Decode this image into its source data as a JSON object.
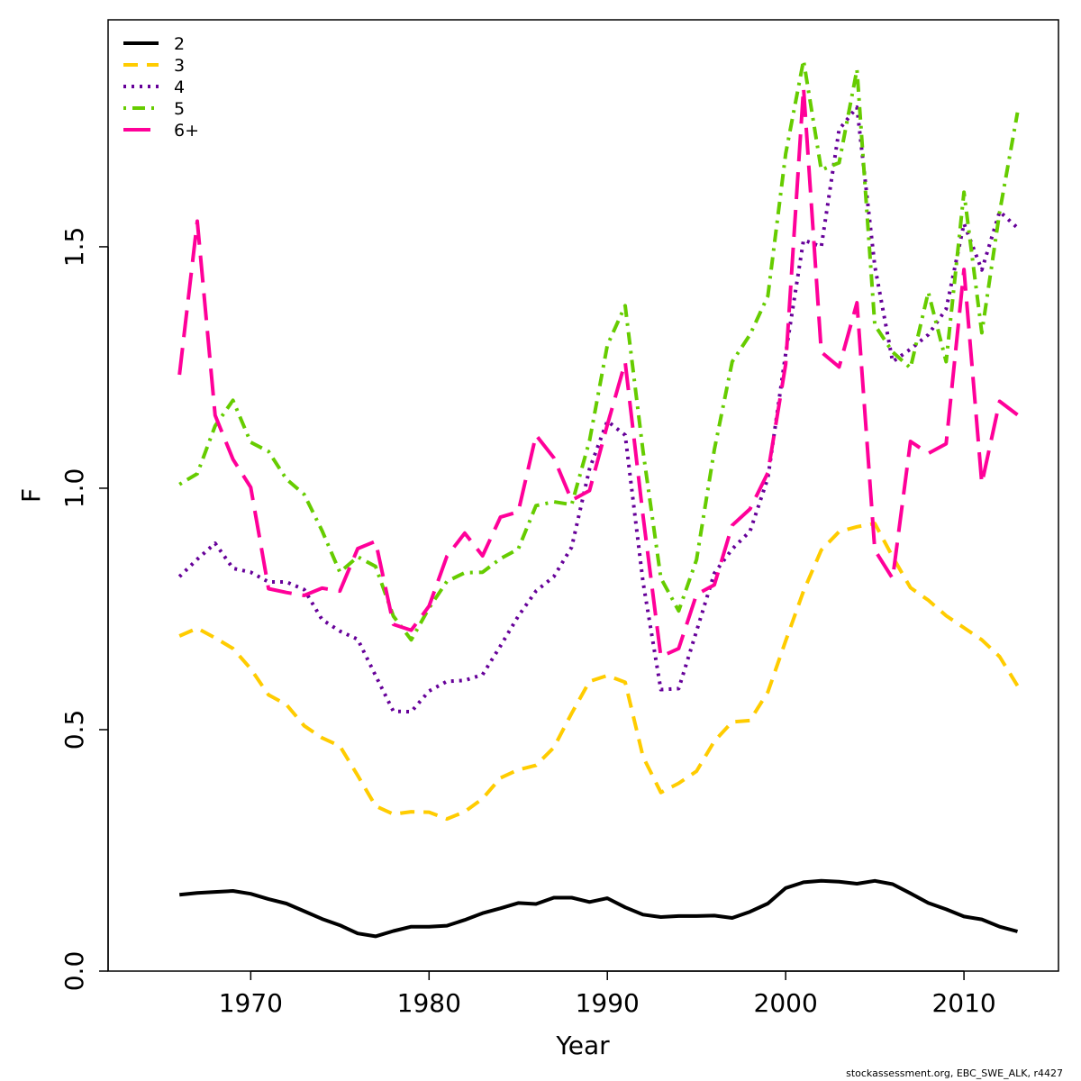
{
  "chart_data": {
    "type": "line",
    "xlabel": "Year",
    "ylabel": "F",
    "xlim": [
      1962,
      2015.3
    ],
    "ylim": [
      0,
      1.97
    ],
    "x_ticks": [
      1970,
      1980,
      1990,
      2000,
      2010
    ],
    "y_ticks": [
      0.0,
      0.5,
      1.0,
      1.5
    ],
    "y_tick_labels": [
      "0.0",
      "0.5",
      "1.0",
      "1.5"
    ],
    "legend_position": "top-left",
    "x": [
      1966,
      1967,
      1968,
      1969,
      1970,
      1971,
      1972,
      1973,
      1974,
      1975,
      1976,
      1977,
      1978,
      1979,
      1980,
      1981,
      1982,
      1983,
      1984,
      1985,
      1986,
      1987,
      1988,
      1989,
      1990,
      1991,
      1992,
      1993,
      1994,
      1995,
      1996,
      1997,
      1998,
      1999,
      2000,
      2001,
      2002,
      2003,
      2004,
      2005,
      2006,
      2007,
      2008,
      2009,
      2010,
      2011,
      2012,
      2013
    ],
    "series": [
      {
        "name": "2",
        "color": "#000000",
        "dash": "solid",
        "values": [
          0.158,
          0.162,
          0.164,
          0.166,
          0.16,
          0.149,
          0.14,
          0.124,
          0.108,
          0.095,
          0.078,
          0.072,
          0.083,
          0.092,
          0.092,
          0.094,
          0.106,
          0.12,
          0.13,
          0.141,
          0.139,
          0.152,
          0.152,
          0.143,
          0.151,
          0.132,
          0.117,
          0.112,
          0.114,
          0.114,
          0.115,
          0.11,
          0.123,
          0.14,
          0.172,
          0.184,
          0.187,
          0.185,
          0.181,
          0.187,
          0.18,
          0.161,
          0.141,
          0.128,
          0.113,
          0.107,
          0.092,
          0.082
        ]
      },
      {
        "name": "3",
        "color": "#FFCC00",
        "dash": "dashed",
        "values": [
          0.694,
          0.71,
          0.69,
          0.668,
          0.626,
          0.572,
          0.552,
          0.508,
          0.483,
          0.466,
          0.405,
          0.342,
          0.325,
          0.33,
          0.329,
          0.315,
          0.33,
          0.357,
          0.4,
          0.417,
          0.426,
          0.463,
          0.534,
          0.6,
          0.612,
          0.598,
          0.444,
          0.37,
          0.389,
          0.414,
          0.476,
          0.516,
          0.519,
          0.578,
          0.684,
          0.787,
          0.872,
          0.91,
          0.92,
          0.927,
          0.858,
          0.794,
          0.768,
          0.736,
          0.711,
          0.686,
          0.651,
          0.591
        ]
      },
      {
        "name": "4",
        "color": "#660099",
        "dash": "dotted",
        "values": [
          0.817,
          0.853,
          0.886,
          0.834,
          0.826,
          0.806,
          0.806,
          0.79,
          0.728,
          0.704,
          0.687,
          0.612,
          0.538,
          0.537,
          0.58,
          0.6,
          0.602,
          0.614,
          0.673,
          0.735,
          0.787,
          0.817,
          0.878,
          1.04,
          1.139,
          1.11,
          0.806,
          0.583,
          0.585,
          0.704,
          0.824,
          0.874,
          0.911,
          1.021,
          1.279,
          1.514,
          1.5,
          1.743,
          1.789,
          1.46,
          1.262,
          1.288,
          1.318,
          1.371,
          1.548,
          1.452,
          1.573,
          1.539
        ]
      },
      {
        "name": "5",
        "color": "#66CC00",
        "dash": "dotdash",
        "values": [
          1.008,
          1.03,
          1.129,
          1.182,
          1.095,
          1.076,
          1.019,
          0.987,
          0.912,
          0.826,
          0.858,
          0.838,
          0.735,
          0.686,
          0.752,
          0.807,
          0.825,
          0.826,
          0.854,
          0.874,
          0.964,
          0.972,
          0.966,
          1.098,
          1.296,
          1.378,
          1.077,
          0.814,
          0.746,
          0.852,
          1.08,
          1.262,
          1.318,
          1.398,
          1.693,
          1.886,
          1.659,
          1.674,
          1.867,
          1.338,
          1.282,
          1.249,
          1.406,
          1.262,
          1.613,
          1.322,
          1.572,
          1.778
        ]
      },
      {
        "name": "6+",
        "color": "#FF0099",
        "dash": "longdash",
        "values": [
          1.235,
          1.553,
          1.151,
          1.06,
          1.002,
          0.792,
          0.784,
          0.778,
          0.793,
          0.787,
          0.875,
          0.89,
          0.718,
          0.706,
          0.756,
          0.859,
          0.907,
          0.86,
          0.94,
          0.951,
          1.11,
          1.063,
          0.975,
          0.995,
          1.131,
          1.261,
          0.943,
          0.651,
          0.668,
          0.78,
          0.8,
          0.923,
          0.957,
          1.032,
          1.257,
          1.829,
          1.282,
          1.251,
          1.384,
          0.872,
          0.813,
          1.097,
          1.072,
          1.092,
          1.453,
          1.01,
          1.18,
          1.152
        ]
      }
    ]
  },
  "footer": {
    "credit": "stockassessment.org, EBC_SWE_ALK, r4427"
  }
}
